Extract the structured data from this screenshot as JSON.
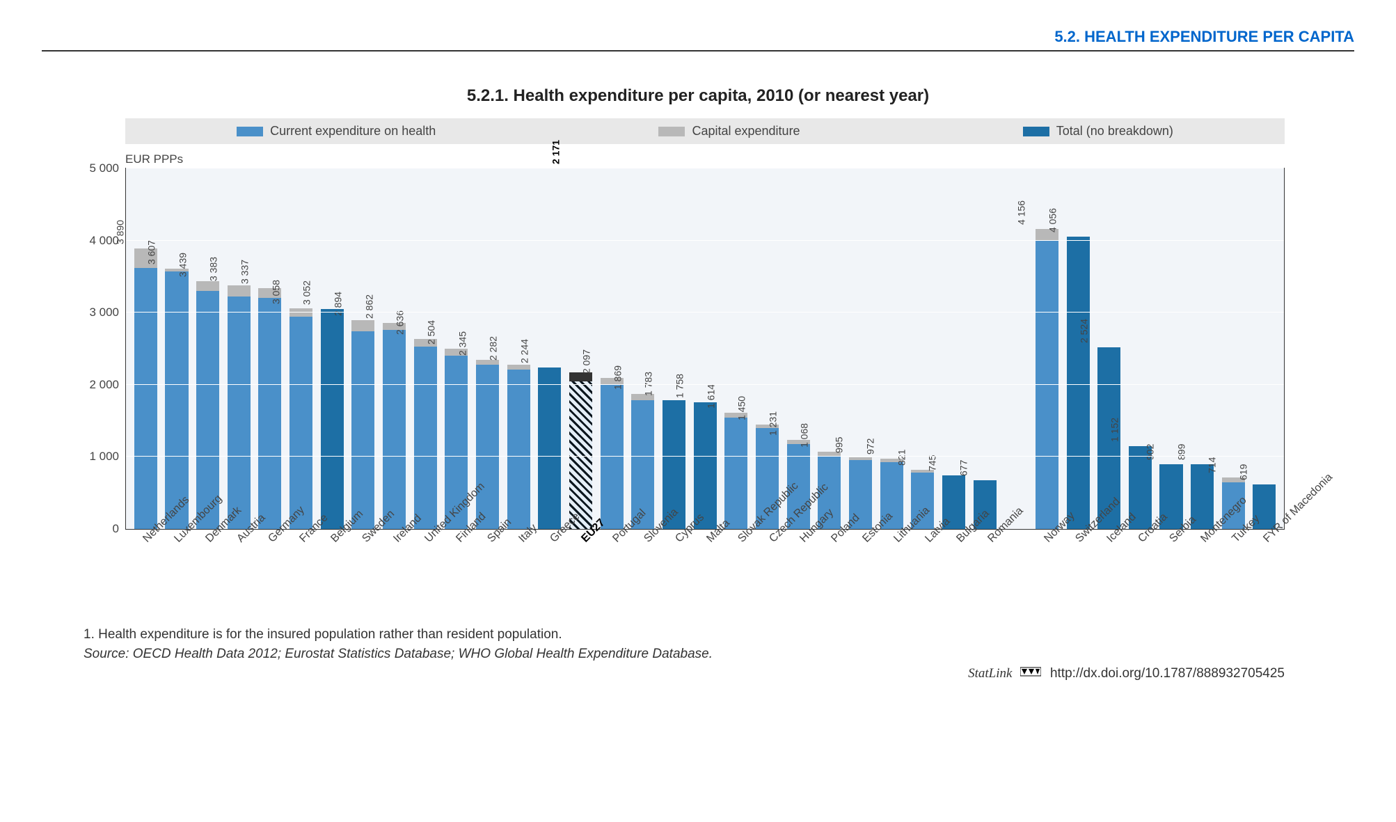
{
  "header": {
    "section": "5.2.  HEALTH EXPENDITURE PER CAPITA"
  },
  "chart": {
    "type": "bar",
    "title": "5.2.1.  Health expenditure per capita, 2010 (or nearest year)",
    "y_axis_label": "EUR PPPs",
    "ylim": [
      0,
      5000
    ],
    "ytick_step": 1000,
    "yticks": [
      "0",
      "1 000",
      "2 000",
      "3 000",
      "4 000",
      "5 000"
    ],
    "background_color": "#f2f5f9",
    "grid_color": "#ffffff",
    "legend": {
      "items": [
        {
          "label": "Current expenditure on health",
          "color": "#4a90c9"
        },
        {
          "label": "Capital expenditure",
          "color": "#b8b8b8"
        },
        {
          "label": "Total (no breakdown)",
          "color": "#1d6fa5"
        }
      ],
      "bg": "#e8e8e8"
    },
    "groups": [
      {
        "bars": [
          {
            "country": "Netherlands",
            "total": 3890,
            "label": "3 890",
            "kind": "stacked",
            "current": 3620,
            "capital": 270
          },
          {
            "country": "Luxembourg",
            "total": 3607,
            "label": "3 607",
            "kind": "stacked",
            "current": 3570,
            "capital": 37
          },
          {
            "country": "Denmark",
            "total": 3439,
            "label": "3 439",
            "kind": "stacked",
            "current": 3300,
            "capital": 139
          },
          {
            "country": "Austria",
            "total": 3383,
            "label": "3 383",
            "kind": "stacked",
            "current": 3220,
            "capital": 163
          },
          {
            "country": "Germany",
            "total": 3337,
            "label": "3 337",
            "kind": "stacked",
            "current": 3200,
            "capital": 137
          },
          {
            "country": "France",
            "total": 3058,
            "label": "3 058",
            "kind": "stacked",
            "current": 2940,
            "capital": 118
          },
          {
            "country": "Belgium",
            "total": 3052,
            "label": "3 052",
            "kind": "total"
          },
          {
            "country": "Sweden",
            "total": 2894,
            "label": "2 894",
            "kind": "stacked",
            "current": 2740,
            "capital": 154
          },
          {
            "country": "Ireland",
            "total": 2862,
            "label": "2 862",
            "kind": "stacked",
            "current": 2760,
            "capital": 102
          },
          {
            "country": "United Kingdom",
            "total": 2636,
            "label": "2 636",
            "kind": "stacked",
            "current": 2530,
            "capital": 106
          },
          {
            "country": "Finland",
            "total": 2504,
            "label": "2 504",
            "kind": "stacked",
            "current": 2400,
            "capital": 104
          },
          {
            "country": "Spain",
            "total": 2345,
            "label": "2 345",
            "kind": "stacked",
            "current": 2280,
            "capital": 65
          },
          {
            "country": "Italy",
            "total": 2282,
            "label": "2 282",
            "kind": "stacked",
            "current": 2210,
            "capital": 72
          },
          {
            "country": "Greece",
            "total": 2244,
            "label": "2 244",
            "kind": "total"
          },
          {
            "country": "EU27",
            "total": 2171,
            "label": "2 171",
            "kind": "eu",
            "current": 2050,
            "cap": 121,
            "bold": true
          },
          {
            "country": "Portugal",
            "total": 2097,
            "label": "2 097",
            "kind": "stacked",
            "current": 2000,
            "capital": 97
          },
          {
            "country": "Slovenia",
            "total": 1869,
            "label": "1 869",
            "kind": "stacked",
            "current": 1790,
            "capital": 79
          },
          {
            "country": "Cyprus",
            "total": 1783,
            "label": "1 783",
            "kind": "total"
          },
          {
            "country": "Malta",
            "total": 1758,
            "label": "1 758",
            "kind": "total"
          },
          {
            "country": "Slovak Republic",
            "total": 1614,
            "label": "1 614",
            "kind": "stacked",
            "current": 1540,
            "capital": 74
          },
          {
            "country": "Czech Republic",
            "total": 1450,
            "label": "1 450",
            "kind": "stacked",
            "current": 1400,
            "capital": 50
          },
          {
            "country": "Hungary",
            "total": 1231,
            "label": "1 231",
            "kind": "stacked",
            "current": 1180,
            "capital": 51
          },
          {
            "country": "Poland",
            "total": 1068,
            "label": "1 068",
            "kind": "stacked",
            "current": 1000,
            "capital": 68
          },
          {
            "country": "Estonia",
            "total": 995,
            "label": "995",
            "kind": "stacked",
            "current": 955,
            "capital": 40
          },
          {
            "country": "Lithuania",
            "total": 972,
            "label": "972",
            "kind": "stacked",
            "current": 930,
            "capital": 42
          },
          {
            "country": "Latvia",
            "total": 821,
            "label": "821",
            "kind": "stacked",
            "current": 780,
            "capital": 41
          },
          {
            "country": "Bulgaria",
            "total": 745,
            "label": "745",
            "kind": "total"
          },
          {
            "country": "Romania",
            "total": 677,
            "label": "677",
            "kind": "total"
          }
        ]
      },
      {
        "bars": [
          {
            "country": "Norway",
            "total": 4156,
            "label": "4 156",
            "kind": "stacked",
            "current": 4000,
            "capital": 156
          },
          {
            "country": "Switzerland",
            "total": 4056,
            "label": "4 056",
            "kind": "total"
          },
          {
            "country": "Iceland",
            "total": 2524,
            "label": "2 524",
            "kind": "total"
          },
          {
            "country": "Croatia",
            "total": 1152,
            "label": "1 152",
            "kind": "total"
          },
          {
            "country": "Serbia",
            "total": 902,
            "label": "902",
            "kind": "total"
          },
          {
            "country": "Montenegro",
            "total": 899,
            "label": "899",
            "kind": "total"
          },
          {
            "country": "Turkey",
            "total": 714,
            "label": "714",
            "kind": "stacked",
            "current": 650,
            "capital": 64
          },
          {
            "country": "FYR of Macedonia",
            "total": 619,
            "label": "619",
            "kind": "total"
          }
        ]
      }
    ]
  },
  "footnote": "1.   Health expenditure is for the insured population rather than resident population.",
  "source_prefix": "Source:",
  "source": "  OECD Health Data 2012; Eurostat Statistics Database; WHO Global Health Expenditure Database.",
  "statlink": {
    "brand": "StatLink",
    "url": "http://dx.doi.org/10.1787/888932705425"
  }
}
